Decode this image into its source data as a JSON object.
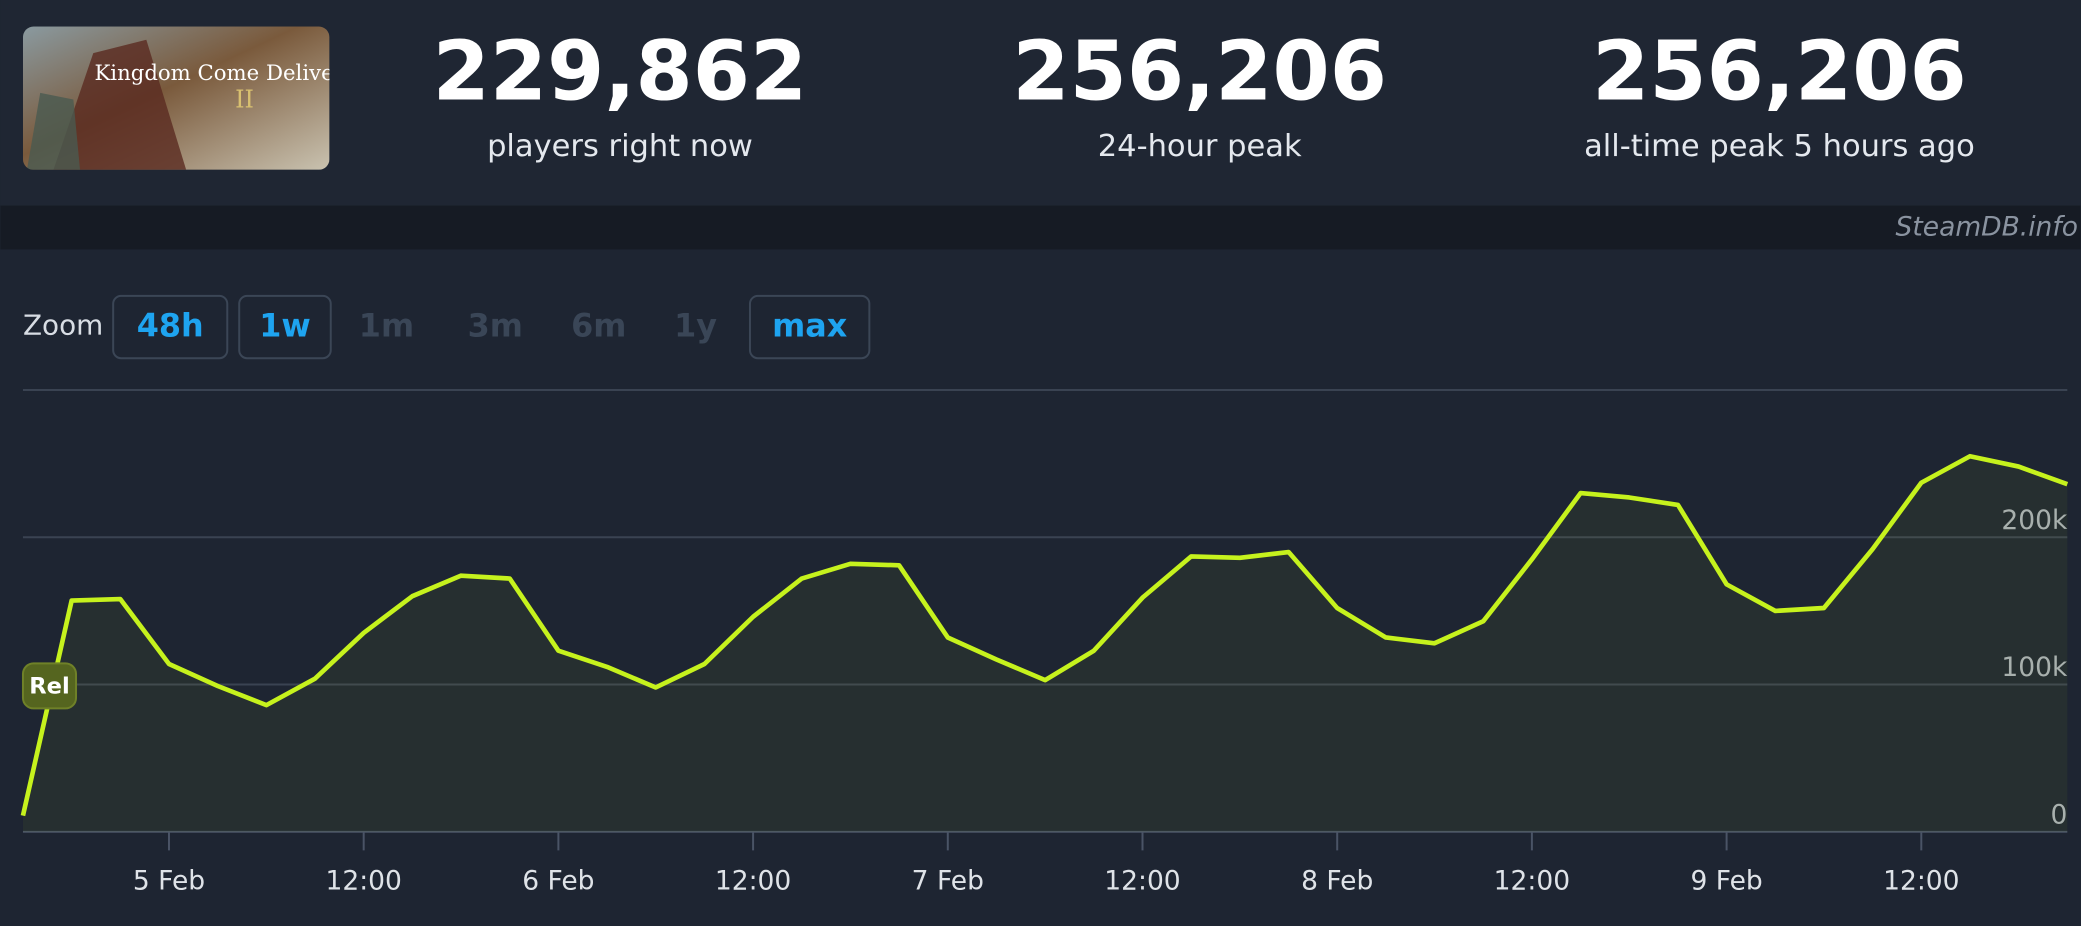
{
  "game_logo": {
    "title": "Kingdom Come Deliverance",
    "numeral": "II"
  },
  "stats": [
    {
      "value": "229,862",
      "label": "players right now"
    },
    {
      "value": "256,206",
      "label": "24-hour peak"
    },
    {
      "value": "256,206",
      "label": "all-time peak 5 hours ago"
    }
  ],
  "watermark": "SteamDB.info",
  "zoom": {
    "label": "Zoom",
    "buttons": [
      {
        "label": "48h",
        "enabled": true
      },
      {
        "label": "1w",
        "enabled": true
      },
      {
        "label": "1m",
        "enabled": false
      },
      {
        "label": "3m",
        "enabled": false
      },
      {
        "label": "6m",
        "enabled": false
      },
      {
        "label": "1y",
        "enabled": false
      },
      {
        "label": "max",
        "enabled": true
      }
    ]
  },
  "chart_data": {
    "type": "line",
    "categories": [
      null,
      null,
      null,
      "5 Feb",
      null,
      null,
      null,
      "12:00",
      null,
      null,
      null,
      "6 Feb",
      null,
      null,
      null,
      "12:00",
      null,
      null,
      null,
      "7 Feb",
      null,
      null,
      null,
      "12:00",
      null,
      null,
      null,
      "8 Feb",
      null,
      null,
      null,
      "12:00",
      null,
      null,
      null,
      "9 Feb",
      null,
      null,
      null,
      "12:00",
      null,
      null,
      null
    ],
    "series": [
      {
        "name": "Players",
        "color": "#c6f21d",
        "values": [
          11000,
          157000,
          158000,
          114000,
          99000,
          86000,
          104000,
          135000,
          160000,
          174000,
          172000,
          123000,
          112000,
          98000,
          114000,
          146000,
          172000,
          182000,
          181000,
          132000,
          117000,
          103000,
          123000,
          159000,
          187000,
          186000,
          190000,
          152000,
          132000,
          128000,
          143000,
          185000,
          230000,
          227000,
          222000,
          168000,
          150000,
          152000,
          192000,
          237000,
          255000,
          248000,
          236000
        ]
      }
    ],
    "ylim": [
      0,
      300000
    ],
    "yticks": [
      0,
      {
        "value": 100000,
        "label": "100k"
      },
      {
        "value": 200000,
        "label": "200k"
      }
    ],
    "grid": true,
    "annotations": [
      {
        "label": "Rel",
        "index": 0
      }
    ]
  }
}
